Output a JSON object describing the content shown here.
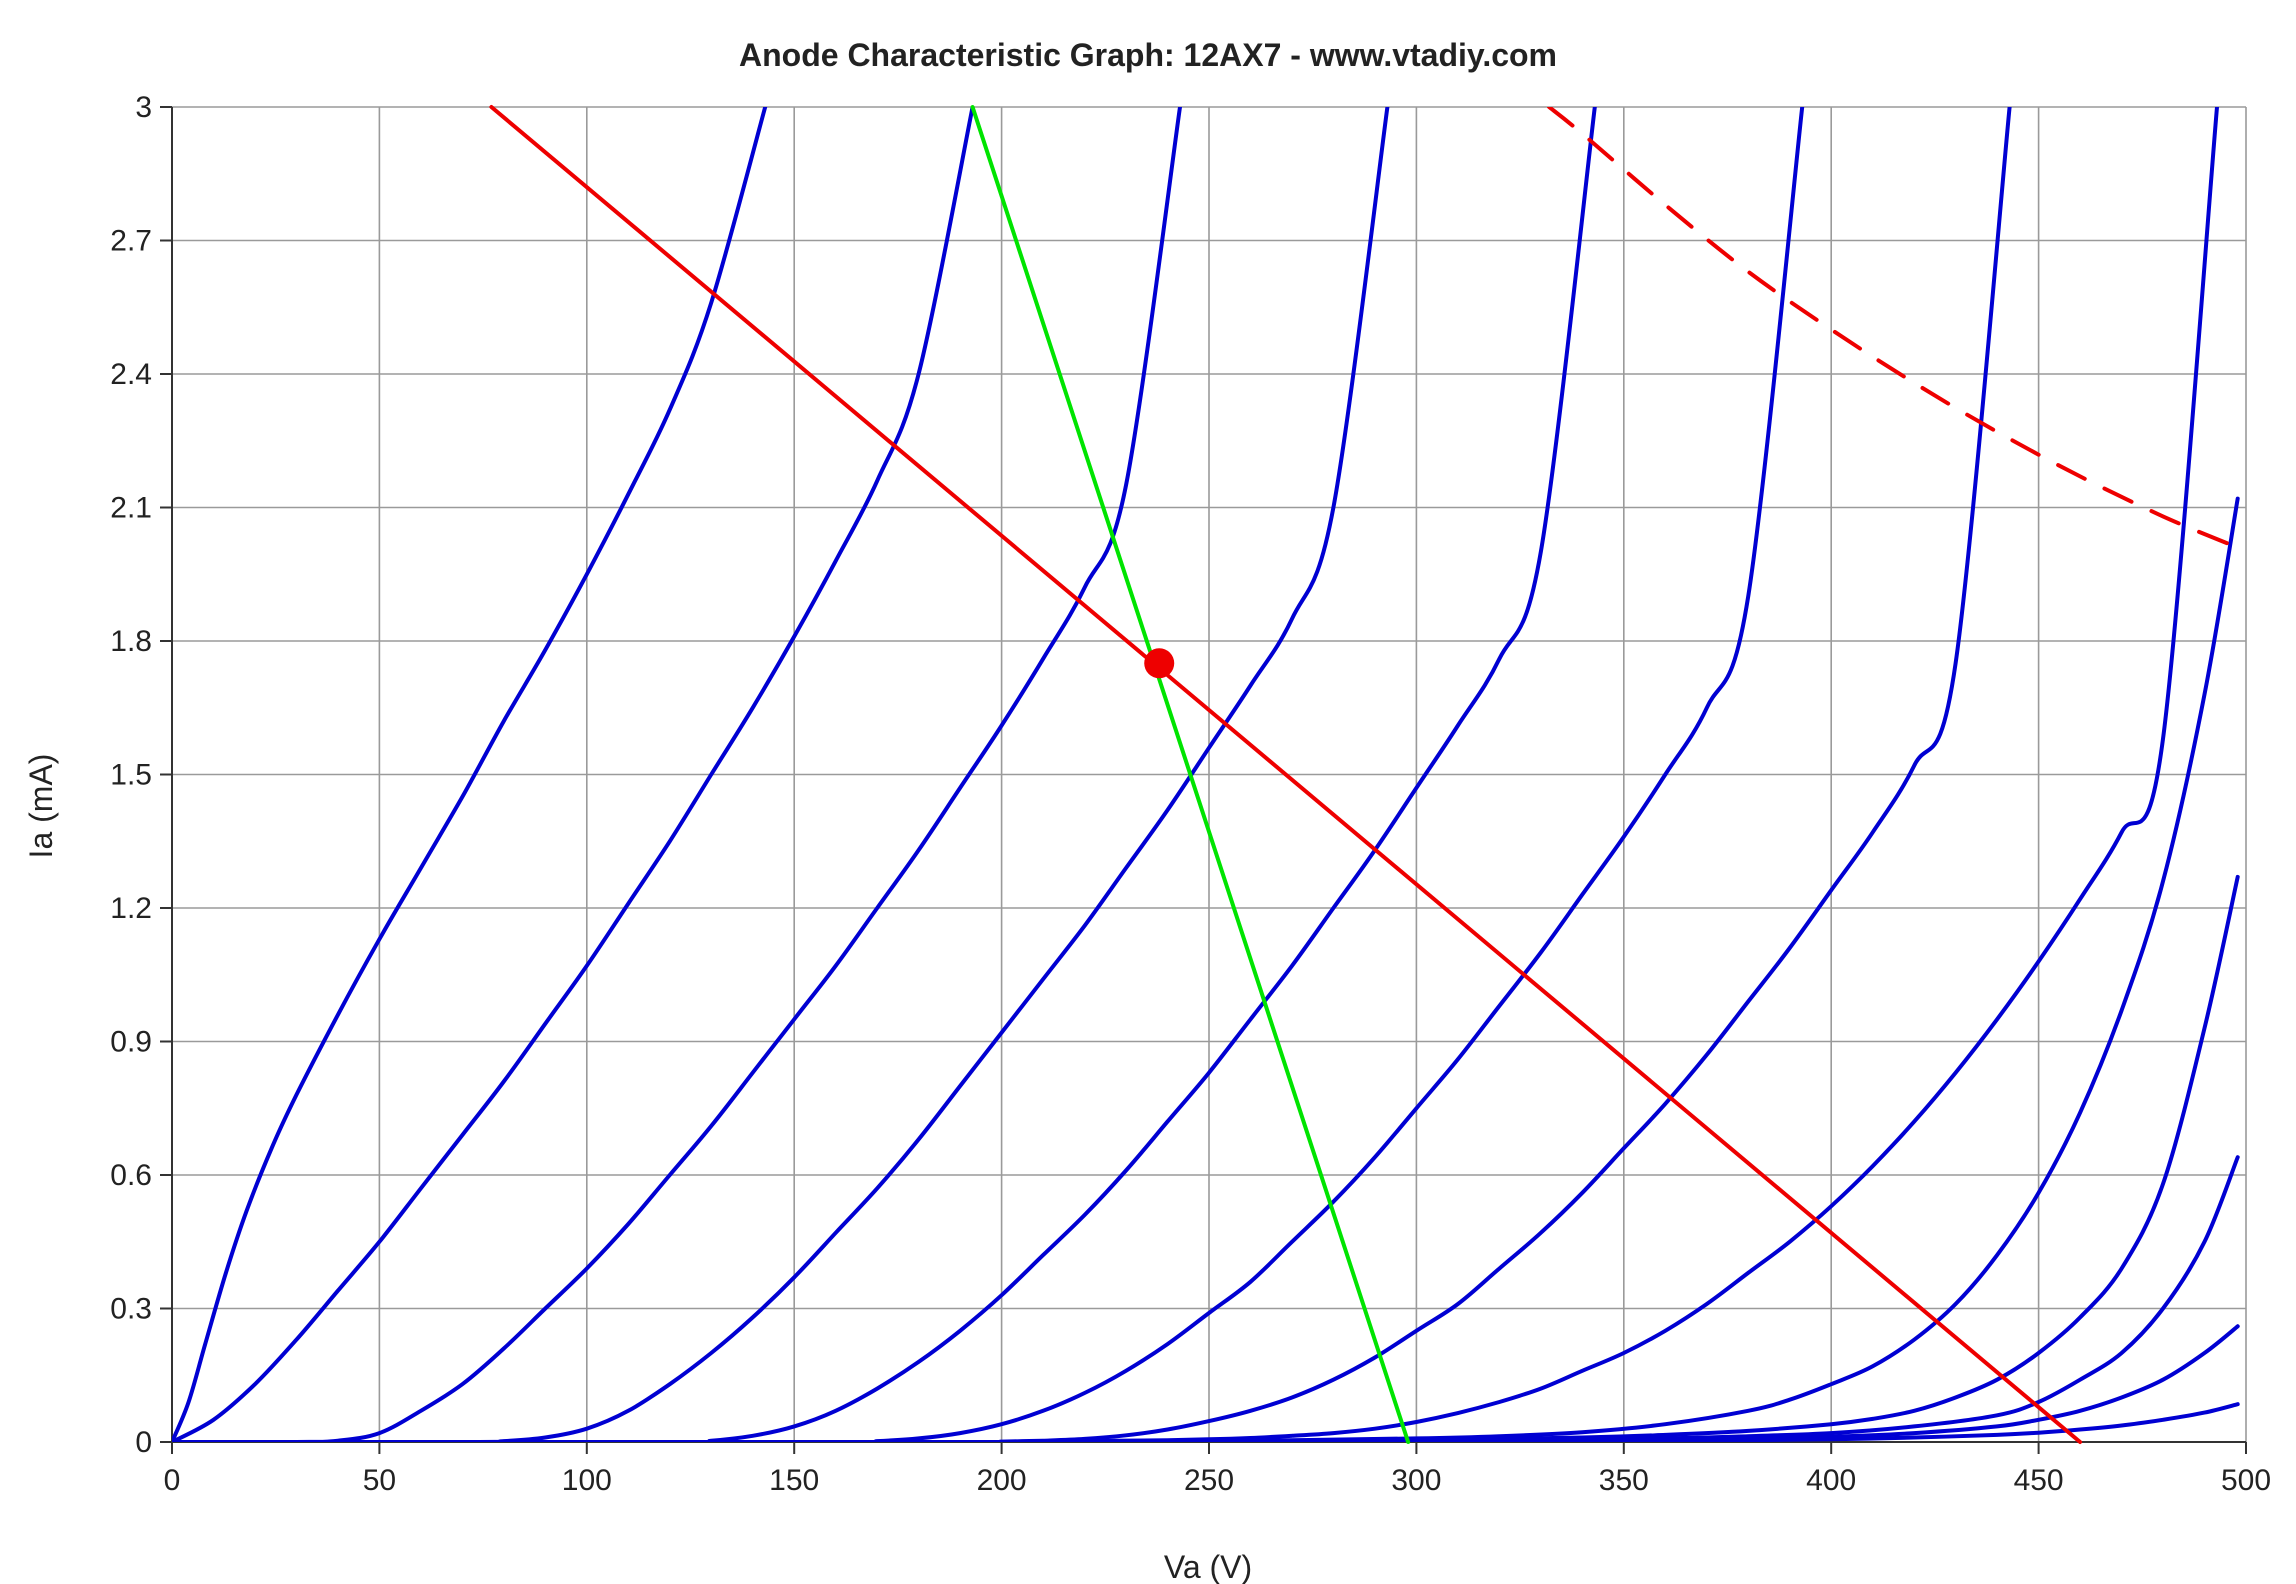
{
  "chart_data": {
    "type": "line",
    "title": "Anode Characteristic Graph: 12AX7 - www.vtadiy.com",
    "xlabel": "Va (V)",
    "ylabel": "Ia (mA)",
    "xlim": [
      0,
      500
    ],
    "ylim": [
      0,
      3
    ],
    "xticks": [
      0,
      50,
      100,
      150,
      200,
      250,
      300,
      350,
      400,
      450,
      500
    ],
    "yticks": [
      0,
      0.3,
      0.6,
      0.9,
      1.2,
      1.5,
      1.8,
      2.1,
      2.4,
      2.7,
      3
    ],
    "xtick_labels": [
      "0",
      "50",
      "100",
      "150",
      "200",
      "250",
      "300",
      "350",
      "400",
      "450",
      "500"
    ],
    "ytick_labels": [
      "0",
      "0.3",
      "0.6",
      "0.9",
      "1.2",
      "1.5",
      "1.8",
      "2.1",
      "2.4",
      "2.7",
      "3"
    ],
    "grid": true,
    "colors": {
      "anode_curves": "#0000d2",
      "load_line": "#ee0000",
      "max_dissipation": "#ee0000",
      "cathode_bias_line": "#00e400",
      "operating_point": "#ee0000"
    },
    "anode_curves": [
      {
        "x": [
          0,
          4,
          8,
          13,
          18,
          24,
          30,
          40,
          50,
          60,
          70,
          80,
          90,
          100,
          110,
          120,
          130,
          143
        ],
        "y": [
          0,
          0.09,
          0.22,
          0.38,
          0.52,
          0.66,
          0.78,
          0.96,
          1.13,
          1.29,
          1.45,
          1.62,
          1.78,
          1.95,
          2.13,
          2.32,
          2.56,
          3.0
        ]
      },
      {
        "x": [
          0,
          10,
          20,
          30,
          40,
          50,
          60,
          70,
          80,
          90,
          100,
          110,
          120,
          130,
          140,
          150,
          160,
          170,
          180,
          193
        ],
        "y": [
          0,
          0.05,
          0.13,
          0.23,
          0.34,
          0.45,
          0.57,
          0.69,
          0.81,
          0.94,
          1.07,
          1.21,
          1.35,
          1.5,
          1.65,
          1.81,
          1.98,
          2.16,
          2.4,
          3.0
        ]
      },
      {
        "x": [
          0,
          30,
          40,
          50,
          60,
          70,
          80,
          90,
          100,
          110,
          120,
          130,
          140,
          150,
          160,
          170,
          180,
          190,
          200,
          210,
          220,
          230,
          243
        ],
        "y": [
          0,
          0,
          0.003,
          0.02,
          0.07,
          0.13,
          0.21,
          0.3,
          0.39,
          0.49,
          0.6,
          0.71,
          0.83,
          0.95,
          1.07,
          1.2,
          1.33,
          1.47,
          1.61,
          1.76,
          1.92,
          2.15,
          3.0
        ]
      },
      {
        "x": [
          0,
          70,
          80,
          90,
          100,
          110,
          120,
          130,
          140,
          150,
          160,
          170,
          180,
          190,
          200,
          210,
          220,
          230,
          240,
          250,
          260,
          270,
          280,
          293
        ],
        "y": [
          0,
          0,
          0.002,
          0.01,
          0.03,
          0.07,
          0.13,
          0.2,
          0.28,
          0.37,
          0.47,
          0.57,
          0.68,
          0.8,
          0.92,
          1.04,
          1.16,
          1.29,
          1.42,
          1.56,
          1.7,
          1.85,
          2.1,
          3.0
        ]
      },
      {
        "x": [
          0,
          120,
          130,
          140,
          150,
          160,
          170,
          180,
          190,
          200,
          210,
          220,
          230,
          240,
          250,
          260,
          270,
          280,
          290,
          300,
          310,
          320,
          330,
          343
        ],
        "y": [
          0,
          0,
          0.003,
          0.014,
          0.035,
          0.07,
          0.12,
          0.18,
          0.25,
          0.33,
          0.42,
          0.51,
          0.61,
          0.72,
          0.83,
          0.95,
          1.07,
          1.2,
          1.33,
          1.47,
          1.61,
          1.76,
          2.0,
          3.0
        ]
      },
      {
        "x": [
          0,
          160,
          170,
          180,
          190,
          200,
          210,
          220,
          230,
          240,
          250,
          260,
          270,
          280,
          290,
          300,
          310,
          320,
          330,
          340,
          350,
          360,
          370,
          380,
          393
        ],
        "y": [
          0,
          0,
          0.002,
          0.008,
          0.02,
          0.04,
          0.07,
          0.11,
          0.16,
          0.22,
          0.29,
          0.36,
          0.45,
          0.54,
          0.64,
          0.75,
          0.86,
          0.98,
          1.1,
          1.23,
          1.36,
          1.5,
          1.65,
          1.9,
          3.0
        ]
      },
      {
        "x": [
          0,
          190,
          200,
          210,
          220,
          230,
          240,
          250,
          260,
          270,
          280,
          290,
          300,
          310,
          320,
          330,
          340,
          350,
          360,
          370,
          380,
          390,
          400,
          410,
          420,
          430,
          443
        ],
        "y": [
          0,
          0,
          0.001,
          0.003,
          0.007,
          0.015,
          0.028,
          0.047,
          0.07,
          0.1,
          0.14,
          0.19,
          0.25,
          0.31,
          0.39,
          0.47,
          0.56,
          0.66,
          0.76,
          0.87,
          0.99,
          1.11,
          1.24,
          1.37,
          1.52,
          1.75,
          3.0
        ]
      },
      {
        "x": [
          0,
          200,
          220,
          240,
          250,
          260,
          270,
          280,
          290,
          300,
          310,
          320,
          330,
          340,
          350,
          360,
          370,
          380,
          390,
          400,
          410,
          420,
          430,
          440,
          450,
          460,
          470,
          480,
          493
        ],
        "y": [
          0,
          0,
          0.002,
          0.004,
          0.006,
          0.009,
          0.014,
          0.02,
          0.03,
          0.045,
          0.065,
          0.09,
          0.12,
          0.16,
          0.2,
          0.25,
          0.31,
          0.38,
          0.45,
          0.53,
          0.62,
          0.72,
          0.83,
          0.95,
          1.08,
          1.22,
          1.37,
          1.58,
          3.0
        ]
      },
      {
        "x": [
          0,
          220,
          260,
          300,
          320,
          340,
          360,
          380,
          390,
          400,
          410,
          420,
          430,
          440,
          450,
          460,
          470,
          480,
          490,
          498
        ],
        "y": [
          0,
          0,
          0.003,
          0.008,
          0.013,
          0.022,
          0.04,
          0.07,
          0.095,
          0.13,
          0.17,
          0.23,
          0.31,
          0.42,
          0.56,
          0.74,
          0.97,
          1.26,
          1.68,
          2.12
        ]
      },
      {
        "x": [
          0,
          240,
          300,
          340,
          360,
          380,
          400,
          410,
          420,
          430,
          440,
          450,
          460,
          470,
          480,
          490,
          498
        ],
        "y": [
          0,
          0,
          0.004,
          0.01,
          0.016,
          0.025,
          0.04,
          0.052,
          0.07,
          0.1,
          0.14,
          0.2,
          0.28,
          0.39,
          0.58,
          0.93,
          1.27
        ]
      },
      {
        "x": [
          0,
          260,
          320,
          360,
          380,
          400,
          420,
          440,
          450,
          460,
          470,
          480,
          490,
          498
        ],
        "y": [
          0,
          0,
          0.003,
          0.008,
          0.013,
          0.02,
          0.035,
          0.06,
          0.09,
          0.14,
          0.2,
          0.3,
          0.45,
          0.64
        ]
      },
      {
        "x": [
          0,
          280,
          340,
          380,
          400,
          420,
          440,
          450,
          460,
          470,
          480,
          490,
          498
        ],
        "y": [
          0,
          0,
          0.003,
          0.008,
          0.012,
          0.02,
          0.035,
          0.05,
          0.07,
          0.1,
          0.14,
          0.2,
          0.26
        ]
      },
      {
        "x": [
          0,
          300,
          360,
          400,
          420,
          440,
          450,
          460,
          470,
          480,
          490,
          498
        ],
        "y": [
          0,
          0,
          0.002,
          0.006,
          0.01,
          0.016,
          0.021,
          0.028,
          0.037,
          0.05,
          0.066,
          0.085
        ]
      }
    ],
    "load_line": {
      "x": [
        77,
        460
      ],
      "y": [
        3.0,
        0
      ]
    },
    "cathode_bias_line": {
      "x": [
        193,
        298
      ],
      "y": [
        3.0,
        0
      ]
    },
    "max_dissipation": {
      "x": [
        332,
        340,
        360,
        380,
        400,
        420,
        440,
        460,
        480,
        498
      ],
      "y": [
        3.0,
        2.94,
        2.78,
        2.63,
        2.5,
        2.38,
        2.27,
        2.17,
        2.08,
        2.01
      ]
    },
    "operating_point": {
      "x": 238,
      "y": 1.75
    }
  }
}
